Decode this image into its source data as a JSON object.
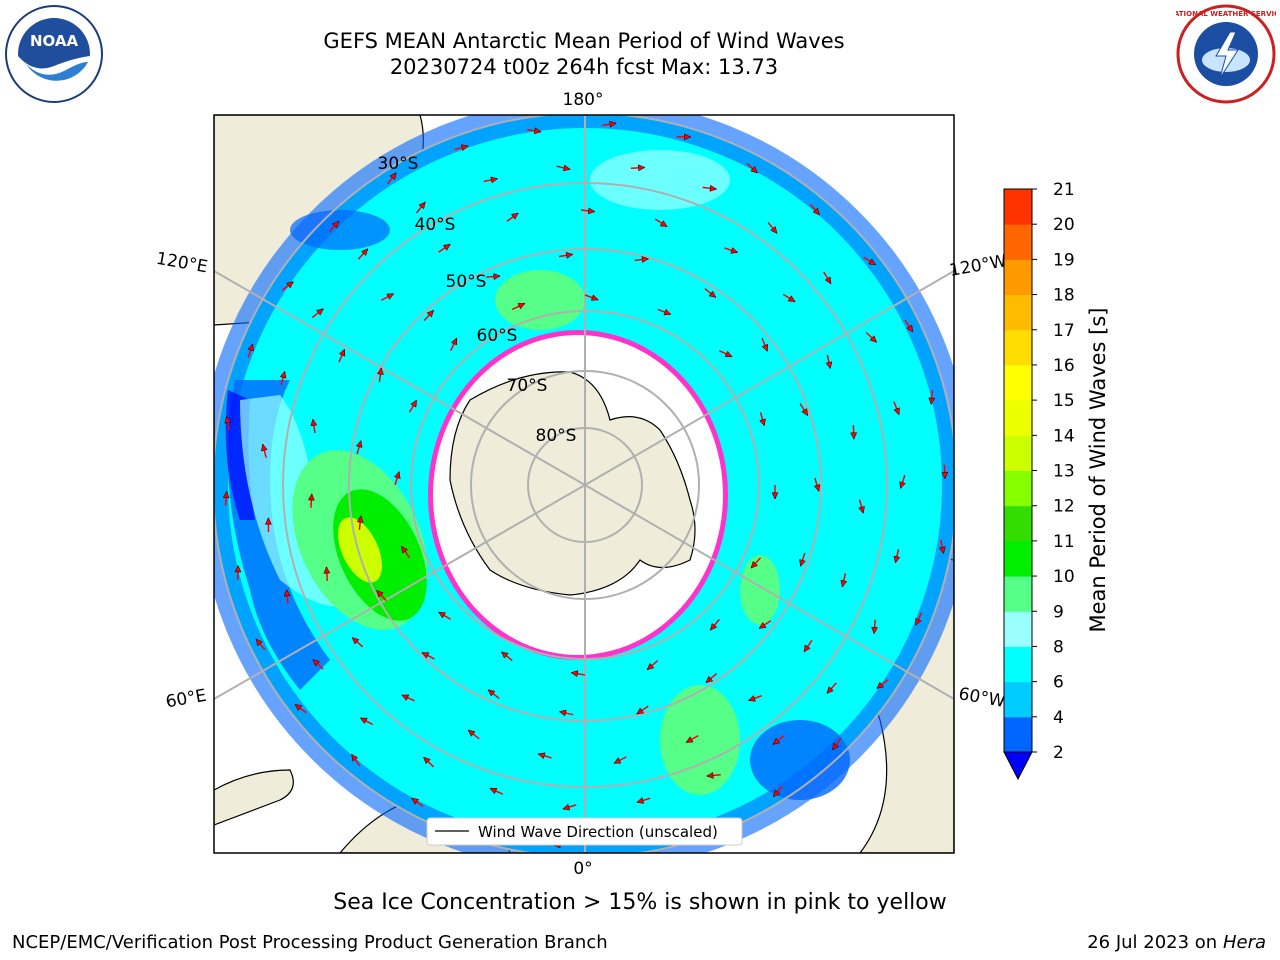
{
  "title_line1": "GEFS MEAN Antarctic Mean Period of Wind Waves",
  "title_line2": "20230724 t00z 264h fcst   Max: 13.73",
  "map": {
    "projection": "south-polar-stereographic",
    "lon_labels": [
      "180°",
      "120°E",
      "120°W",
      "60°E",
      "60°W",
      "0°"
    ],
    "lat_labels": [
      "30°S",
      "40°S",
      "50°S",
      "60°S",
      "70°S",
      "80°S"
    ],
    "legend_label": "Wind Wave Direction (unscaled)",
    "colors": {
      "land": "#efedd9",
      "ice_edge": "#ff33cc",
      "arrow": "#ff0000",
      "grid": "#b0b0b0"
    }
  },
  "colorbar": {
    "label": "Mean Period of Wind Waves [s]",
    "ticks": [
      "21",
      "20",
      "19",
      "18",
      "17",
      "16",
      "15",
      "14",
      "13",
      "12",
      "11",
      "10",
      "9",
      "8",
      "6",
      "4",
      "2"
    ],
    "levels": [
      2,
      4,
      6,
      8,
      9,
      10,
      11,
      12,
      13,
      14,
      15,
      16,
      17,
      18,
      19,
      20,
      21
    ],
    "colors": [
      "#0066ff",
      "#00ccff",
      "#00ffff",
      "#99ffff",
      "#55ff88",
      "#00ee00",
      "#33dd00",
      "#88ff00",
      "#ccff00",
      "#eeff00",
      "#ffff00",
      "#ffdd00",
      "#ffbb00",
      "#ff9900",
      "#ff6600",
      "#ff3300"
    ],
    "extend_color": "#0000ff"
  },
  "caption": "Sea Ice Concentration > 15% is shown in pink to yellow",
  "footer_left": "NCEP/EMC/Verification Post Processing Product Generation Branch",
  "footer_right_prefix": "26 Jul 2023 on ",
  "footer_right_host": "Hera",
  "noaa_logo_text": "NOAA",
  "nws_logo_text": "NATIONAL WEATHER SERVICE"
}
